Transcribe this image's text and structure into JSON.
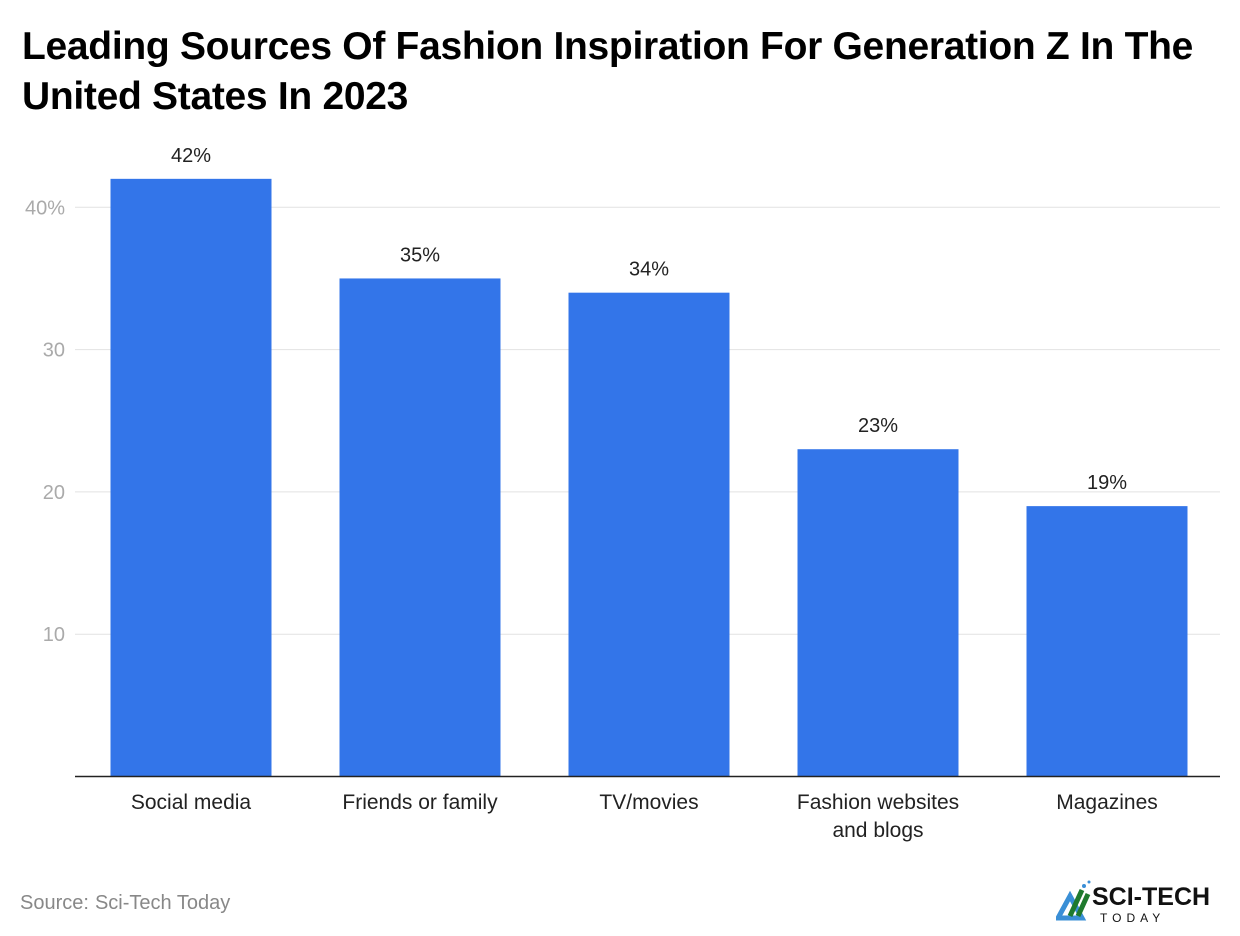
{
  "chart_data": {
    "type": "bar",
    "title": "Leading Sources Of Fashion Inspiration For Generation Z In The United States In 2023",
    "categories": [
      "Social media",
      "Friends or family",
      "TV/movies",
      "Fashion websites and blogs",
      "Magazines"
    ],
    "category_lines": [
      [
        "Social media"
      ],
      [
        "Friends or family"
      ],
      [
        "TV/movies"
      ],
      [
        "Fashion websites",
        "and blogs"
      ],
      [
        "Magazines"
      ]
    ],
    "values": [
      42,
      35,
      34,
      23,
      19
    ],
    "data_labels": [
      "42%",
      "35%",
      "34%",
      "23%",
      "19%"
    ],
    "xlabel": "",
    "ylabel": "",
    "ylim": [
      0,
      44
    ],
    "yticks": [
      10,
      20,
      30,
      40
    ],
    "ytick_labels": [
      "10",
      "20",
      "30",
      "40%"
    ],
    "grid": true,
    "bar_color": "#3375e9"
  },
  "source": {
    "label": "Source:",
    "value": "Sci-Tech Today"
  },
  "logo": {
    "text_main": "SCI-TECH",
    "text_sub": "TODAY"
  }
}
